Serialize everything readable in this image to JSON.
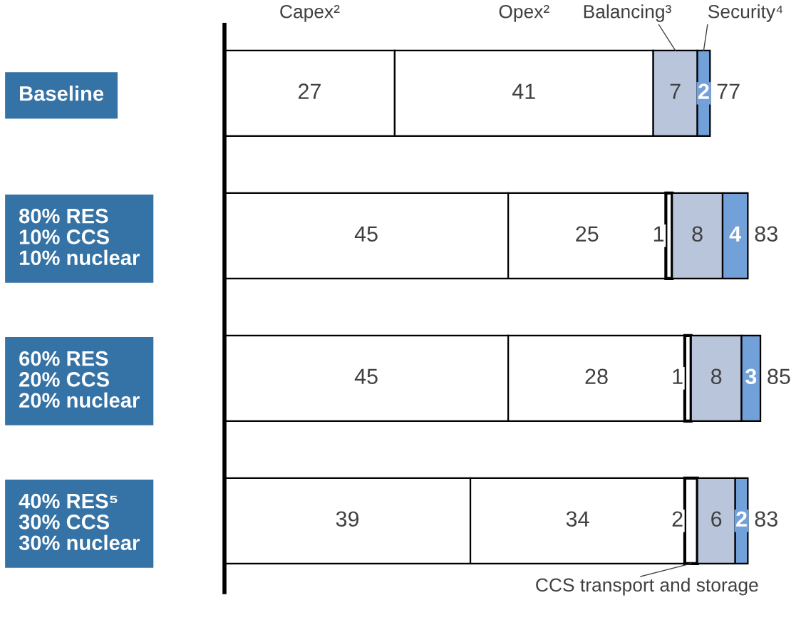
{
  "chart_data": {
    "type": "bar",
    "orientation": "horizontal",
    "stacked": true,
    "legend": false,
    "grid": false,
    "tick_labels": "y",
    "data_labels": true,
    "categories": [
      "Baseline",
      "80% RES\n10% CCS\n10% nuclear",
      "60% RES\n20% CCS\n20% nuclear",
      "40% RES⁵\n30% CCS\n30% nuclear"
    ],
    "series": [
      {
        "name": "Capex²",
        "color": "#ffffff",
        "values": [
          27,
          45,
          45,
          39
        ]
      },
      {
        "name": "Opex²",
        "color": "#ffffff",
        "values": [
          41,
          25,
          28,
          34
        ]
      },
      {
        "name": "CCS transport and storage",
        "color": "#ffffff",
        "values": [
          null,
          1,
          1,
          2
        ]
      },
      {
        "name": "Balancing³",
        "color": "#b9c5da",
        "values": [
          7,
          8,
          8,
          6
        ]
      },
      {
        "name": "Security⁴",
        "color": "#72a1d9",
        "values": [
          2,
          4,
          3,
          2
        ]
      }
    ],
    "totals": [
      "77",
      "83",
      "85",
      "83"
    ]
  }
}
